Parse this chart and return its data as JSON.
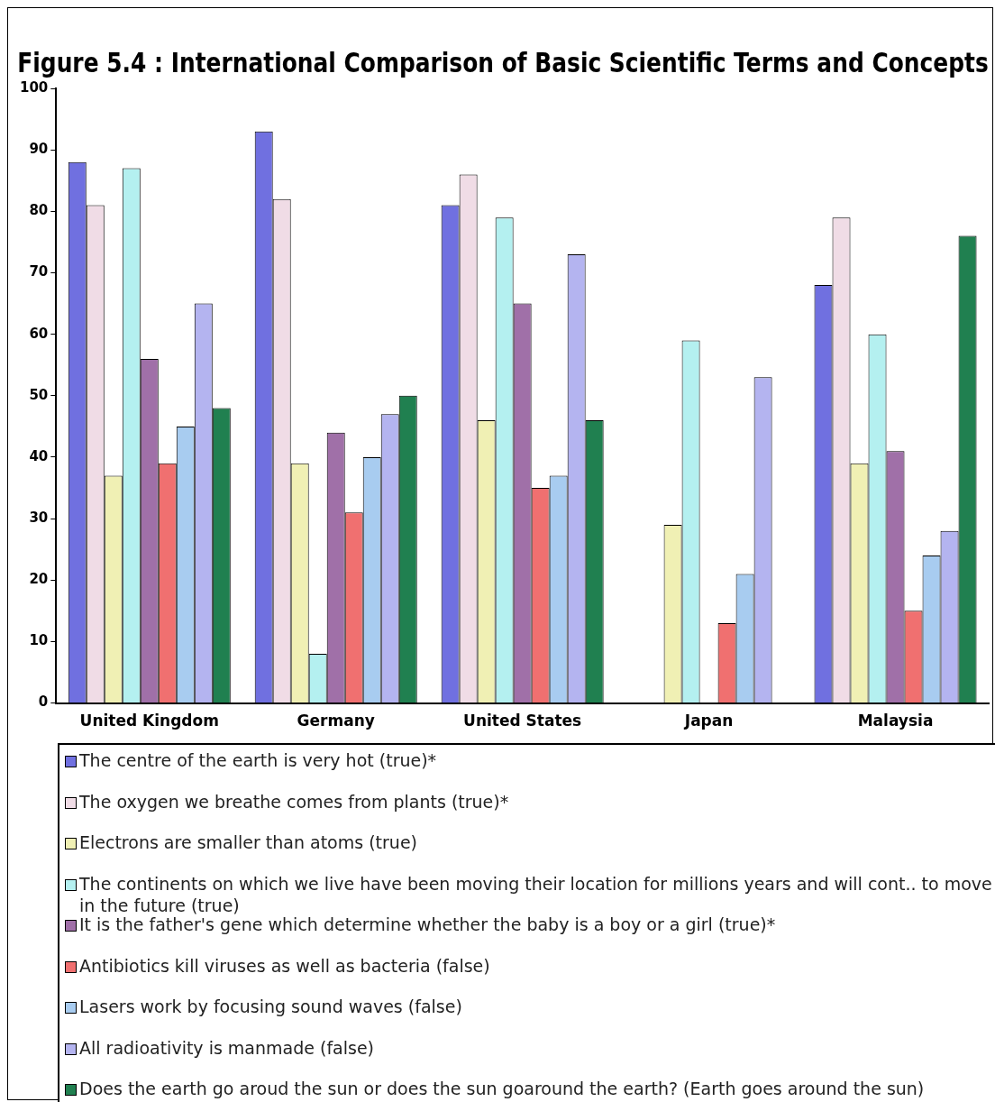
{
  "chart_data": {
    "type": "bar",
    "title": "Figure 5.4 : International Comparison of Basic Scientific Terms and Concepts",
    "categories": [
      "United Kingdom",
      "Germany",
      "United States",
      "Japan",
      "Malaysia"
    ],
    "ylim": [
      0,
      100
    ],
    "yticks": [
      0,
      10,
      20,
      30,
      40,
      50,
      60,
      70,
      80,
      90,
      100
    ],
    "grid": false,
    "legend": "bottom",
    "series": [
      {
        "name": "The centre of the earth is very hot (true)*",
        "color": "#7070e0",
        "values": [
          88,
          93,
          81,
          null,
          68
        ]
      },
      {
        "name": "The oxygen we breathe comes from plants (true)*",
        "color": "#f0dce6",
        "values": [
          81,
          82,
          86,
          null,
          79
        ]
      },
      {
        "name": "Electrons are smaller than atoms (true)",
        "color": "#f0f0b4",
        "values": [
          37,
          39,
          46,
          29,
          39
        ]
      },
      {
        "name": "The continents on which we live have been moving their location for millions years and will cont.. to move in the future (true)",
        "color": "#b4f0f0",
        "values": [
          87,
          8,
          79,
          59,
          60
        ]
      },
      {
        "name": "It is the father's gene which determine whether the baby is a boy or a girl (true)*",
        "color": "#a070a8",
        "values": [
          56,
          44,
          65,
          null,
          41
        ]
      },
      {
        "name": "Antibiotics kill viruses as well as bacteria (false)",
        "color": "#f07070",
        "values": [
          39,
          31,
          35,
          13,
          15
        ]
      },
      {
        "name": "Lasers work by focusing sound waves (false)",
        "color": "#a8ccf0",
        "values": [
          45,
          40,
          37,
          21,
          24
        ]
      },
      {
        "name": "All radioativity is manmade (false)",
        "color": "#b4b4f0",
        "values": [
          65,
          47,
          73,
          53,
          28
        ]
      },
      {
        "name": "Does the earth go aroud the sun or does the sun goaround the earth? (Earth goes around the sun)",
        "color": "#208050",
        "values": [
          48,
          50,
          46,
          null,
          76
        ]
      }
    ]
  }
}
